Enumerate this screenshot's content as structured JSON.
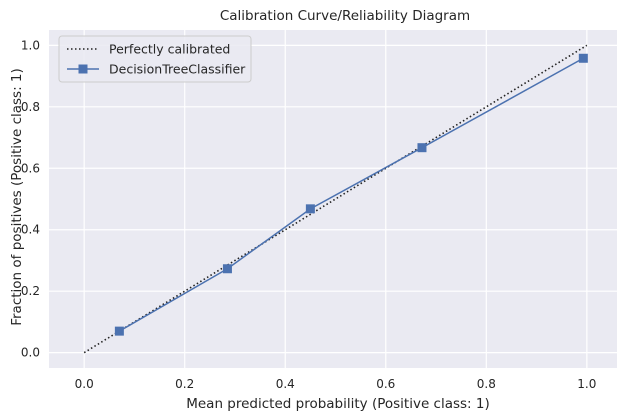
{
  "chart_data": {
    "type": "line",
    "title": "Calibration Curve/Reliability Diagram",
    "xlabel": "Mean predicted probability (Positive class: 1)",
    "ylabel": "Fraction of positives (Positive class: 1)",
    "xlim": [
      -0.07,
      1.06
    ],
    "ylim": [
      -0.05,
      1.05
    ],
    "xticks": [
      "0.0",
      "0.2",
      "0.4",
      "0.6",
      "0.8",
      "1.0"
    ],
    "yticks": [
      "0.0",
      "0.2",
      "0.4",
      "0.6",
      "0.8",
      "1.0"
    ],
    "grid": true,
    "legend_position": "upper-left",
    "series": [
      {
        "name": "Perfectly calibrated",
        "style": "dotted",
        "color": "#222222",
        "x": [
          0.0,
          1.0
        ],
        "y": [
          0.0,
          1.0
        ]
      },
      {
        "name": "DecisionTreeClassifier",
        "style": "solid",
        "marker": "square",
        "color": "#4c72b0",
        "x": [
          0.07,
          0.285,
          0.45,
          0.672,
          0.993
        ],
        "y": [
          0.07,
          0.273,
          0.468,
          0.667,
          0.958
        ]
      }
    ],
    "background": "#eaeaf2",
    "grid_color": "#ffffff"
  }
}
